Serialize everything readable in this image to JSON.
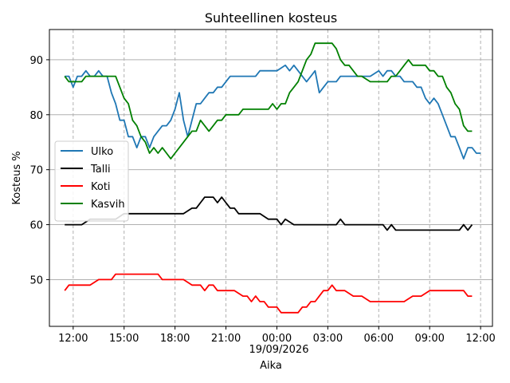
{
  "chart_data": {
    "type": "line",
    "title": "Suhteellinen kosteus",
    "xlabel": "Aika",
    "ylabel": "Kosteus %",
    "date_label": "19/09/2026",
    "x_ticks": [
      "12:00",
      "15:00",
      "18:00",
      "21:00",
      "00:00",
      "03:00",
      "06:00",
      "09:00",
      "12:00"
    ],
    "x_tick_hours": [
      12,
      15,
      18,
      21,
      24,
      27,
      30,
      33,
      36
    ],
    "xlim": [
      10.6,
      36.7
    ],
    "y_ticks": [
      50,
      60,
      70,
      80,
      90
    ],
    "ylim": [
      41.5,
      95.5
    ],
    "grid": {
      "x": "dashed",
      "y": "solid"
    },
    "legend_position": "center-left",
    "series": [
      {
        "name": "Ulko",
        "color": "#1f77b4",
        "x": [
          11.5,
          11.75,
          12.0,
          12.25,
          12.5,
          12.75,
          13.0,
          13.25,
          13.5,
          13.75,
          14.0,
          14.25,
          14.5,
          14.75,
          15.0,
          15.25,
          15.5,
          15.75,
          16.0,
          16.25,
          16.5,
          16.75,
          17.0,
          17.25,
          17.5,
          17.75,
          18.0,
          18.25,
          18.5,
          18.75,
          19.0,
          19.25,
          19.5,
          19.75,
          20.0,
          20.25,
          20.5,
          20.75,
          21.0,
          21.25,
          21.5,
          21.75,
          22.0,
          22.25,
          22.5,
          22.75,
          23.0,
          23.5,
          24.0,
          24.5,
          24.75,
          25.0,
          25.25,
          25.5,
          25.75,
          26.0,
          26.25,
          26.5,
          26.75,
          27.0,
          27.25,
          27.5,
          27.75,
          28.0,
          28.5,
          29.0,
          29.5,
          30.0,
          30.25,
          30.5,
          30.75,
          31.0,
          31.25,
          31.5,
          31.75,
          32.0,
          32.25,
          32.5,
          32.75,
          33.0,
          33.25,
          33.5,
          33.75,
          34.0,
          34.25,
          34.5,
          34.75,
          35.0,
          35.25,
          35.5,
          35.75,
          36.0
        ],
        "values": [
          87,
          87,
          85,
          87,
          87,
          88,
          87,
          87,
          88,
          87,
          87,
          84,
          82,
          79,
          79,
          76,
          76,
          74,
          76,
          76,
          74,
          76,
          77,
          78,
          78,
          79,
          81,
          84,
          79,
          76,
          79,
          82,
          82,
          83,
          84,
          84,
          85,
          85,
          86,
          87,
          87,
          87,
          87,
          87,
          87,
          87,
          88,
          88,
          88,
          89,
          88,
          89,
          88,
          87,
          86,
          87,
          88,
          84,
          85,
          86,
          86,
          86,
          87,
          87,
          87,
          87,
          87,
          88,
          87,
          88,
          88,
          87,
          87,
          86,
          86,
          86,
          85,
          85,
          83,
          82,
          83,
          82,
          80,
          78,
          76,
          76,
          74,
          72,
          74,
          74,
          73,
          73
        ]
      },
      {
        "name": "Talli",
        "color": "#000000",
        "x": [
          11.5,
          12.0,
          12.5,
          13.0,
          13.5,
          14.0,
          14.5,
          15.0,
          16.0,
          17.0,
          18.0,
          18.5,
          19.0,
          19.25,
          19.5,
          19.75,
          20.0,
          20.25,
          20.5,
          20.75,
          21.0,
          21.25,
          21.5,
          21.75,
          22.0,
          22.5,
          23.0,
          23.5,
          24.0,
          24.25,
          24.5,
          25.0,
          26.0,
          27.0,
          27.5,
          27.75,
          28.0,
          29.0,
          30.0,
          30.25,
          30.5,
          30.75,
          31.0,
          32.0,
          33.0,
          34.0,
          34.5,
          34.75,
          35.0,
          35.25,
          35.5
        ],
        "values": [
          60,
          60,
          60,
          61,
          61,
          61,
          61,
          62,
          62,
          62,
          62,
          62,
          63,
          63,
          64,
          65,
          65,
          65,
          64,
          65,
          64,
          63,
          63,
          62,
          62,
          62,
          62,
          61,
          61,
          60,
          61,
          60,
          60,
          60,
          60,
          61,
          60,
          60,
          60,
          60,
          59,
          60,
          59,
          59,
          59,
          59,
          59,
          59,
          60,
          59,
          60
        ]
      },
      {
        "name": "Koti",
        "color": "#ff0000",
        "x": [
          11.5,
          11.75,
          12.0,
          12.5,
          13.0,
          13.5,
          14.0,
          14.25,
          14.5,
          15.0,
          16.0,
          17.0,
          17.25,
          17.5,
          18.0,
          18.5,
          19.0,
          19.25,
          19.5,
          19.75,
          20.0,
          20.25,
          20.5,
          21.0,
          21.5,
          22.0,
          22.25,
          22.5,
          22.75,
          23.0,
          23.25,
          23.5,
          24.0,
          24.25,
          24.5,
          25.0,
          25.25,
          25.5,
          25.75,
          26.0,
          26.25,
          26.5,
          26.75,
          27.0,
          27.25,
          27.5,
          27.75,
          28.0,
          28.5,
          29.0,
          29.5,
          30.0,
          31.0,
          31.5,
          32.0,
          32.5,
          33.0,
          34.0,
          35.0,
          35.25,
          35.5
        ],
        "values": [
          48,
          49,
          49,
          49,
          49,
          50,
          50,
          50,
          51,
          51,
          51,
          51,
          50,
          50,
          50,
          50,
          49,
          49,
          49,
          48,
          49,
          49,
          48,
          48,
          48,
          47,
          47,
          46,
          47,
          46,
          46,
          45,
          45,
          44,
          44,
          44,
          44,
          45,
          45,
          46,
          46,
          47,
          48,
          48,
          49,
          48,
          48,
          48,
          47,
          47,
          46,
          46,
          46,
          46,
          47,
          47,
          48,
          48,
          48,
          47,
          47
        ]
      },
      {
        "name": "Kasvih",
        "color": "#008000",
        "x": [
          11.5,
          11.75,
          12.0,
          12.5,
          12.75,
          13.0,
          13.5,
          14.0,
          14.25,
          14.5,
          14.75,
          15.0,
          15.25,
          15.5,
          15.75,
          16.0,
          16.25,
          16.5,
          16.75,
          17.0,
          17.25,
          17.5,
          17.75,
          18.0,
          18.25,
          18.5,
          18.75,
          19.0,
          19.25,
          19.5,
          19.75,
          20.0,
          20.25,
          20.5,
          20.75,
          21.0,
          21.25,
          21.5,
          21.75,
          22.0,
          22.5,
          23.0,
          23.5,
          23.75,
          24.0,
          24.25,
          24.5,
          24.75,
          25.0,
          25.25,
          25.5,
          25.75,
          26.0,
          26.25,
          26.5,
          26.75,
          27.0,
          27.25,
          27.5,
          27.75,
          28.0,
          28.25,
          28.5,
          28.75,
          29.0,
          29.5,
          30.0,
          30.5,
          30.75,
          31.0,
          31.25,
          31.5,
          31.75,
          32.0,
          32.5,
          32.75,
          33.0,
          33.25,
          33.5,
          33.75,
          34.0,
          34.25,
          34.5,
          34.75,
          35.0,
          35.25,
          35.5
        ],
        "values": [
          87,
          86,
          86,
          86,
          87,
          87,
          87,
          87,
          87,
          87,
          85,
          83,
          82,
          79,
          78,
          76,
          75,
          73,
          74,
          73,
          74,
          73,
          72,
          73,
          74,
          75,
          76,
          77,
          77,
          79,
          78,
          77,
          78,
          79,
          79,
          80,
          80,
          80,
          80,
          81,
          81,
          81,
          81,
          82,
          81,
          82,
          82,
          84,
          85,
          86,
          88,
          90,
          91,
          93,
          93,
          93,
          93,
          93,
          92,
          90,
          89,
          89,
          88,
          87,
          87,
          86,
          86,
          86,
          87,
          87,
          88,
          89,
          90,
          89,
          89,
          89,
          88,
          88,
          87,
          87,
          85,
          84,
          82,
          81,
          78,
          77,
          77
        ]
      }
    ]
  }
}
